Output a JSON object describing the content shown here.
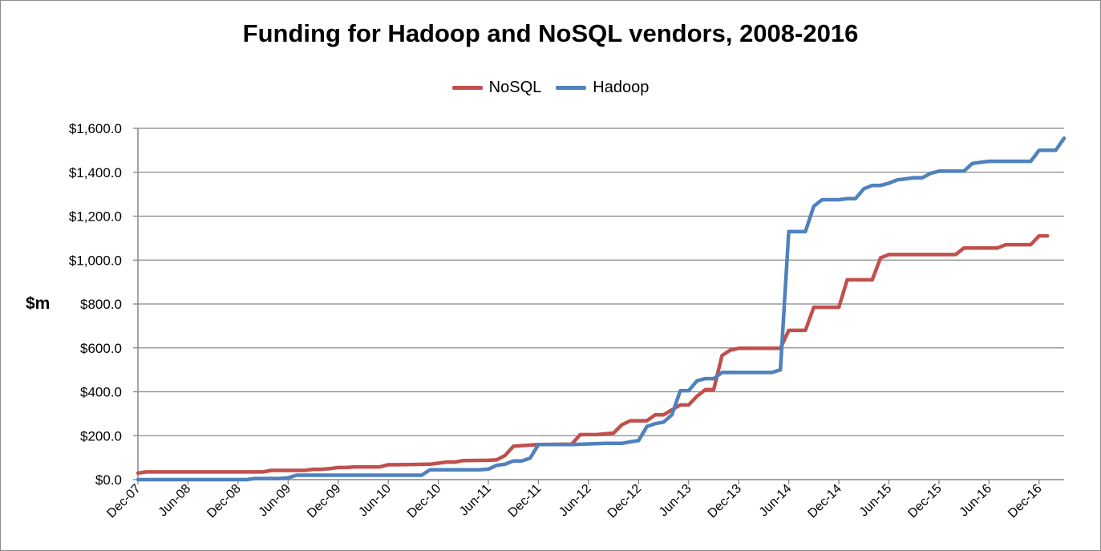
{
  "chart_data": {
    "type": "line",
    "title": "Funding for Hadoop and NoSQL vendors, 2008-2016",
    "xlabel": "",
    "ylabel": "$m",
    "ylim": [
      0,
      1600
    ],
    "y_ticks": [
      "$0.0",
      "$200.0",
      "$400.0",
      "$600.0",
      "$800.0",
      "$1,000.0",
      "$1,200.0",
      "$1,400.0",
      "$1,600.0"
    ],
    "x_ticks": [
      "Dec-07",
      "Jun-08",
      "Dec-08",
      "Jun-09",
      "Dec-09",
      "Jun-10",
      "Dec-10",
      "Jun-11",
      "Dec-11",
      "Jun-12",
      "Dec-12",
      "Jun-13",
      "Dec-13",
      "Jun-14",
      "Dec-14",
      "Jun-15",
      "Dec-15",
      "Jun-16",
      "Dec-16"
    ],
    "grid": true,
    "legend": "top",
    "series": [
      {
        "name": "NoSQL",
        "color": "#c0504d",
        "points": [
          [
            "2007-12",
            30
          ],
          [
            "2008-01",
            35
          ],
          [
            "2008-06",
            35
          ],
          [
            "2008-12",
            35
          ],
          [
            "2009-03",
            35
          ],
          [
            "2009-04",
            42
          ],
          [
            "2009-06",
            42
          ],
          [
            "2009-08",
            42
          ],
          [
            "2009-09",
            47
          ],
          [
            "2009-10",
            47
          ],
          [
            "2009-11",
            50
          ],
          [
            "2009-12",
            55
          ],
          [
            "2010-01",
            55
          ],
          [
            "2010-02",
            58
          ],
          [
            "2010-05",
            58
          ],
          [
            "2010-06",
            68
          ],
          [
            "2010-07",
            68
          ],
          [
            "2010-11",
            70
          ],
          [
            "2011-01",
            80
          ],
          [
            "2011-02",
            80
          ],
          [
            "2011-03",
            87
          ],
          [
            "2011-06",
            88
          ],
          [
            "2011-07",
            90
          ],
          [
            "2011-08",
            110
          ],
          [
            "2011-09",
            152
          ],
          [
            "2011-10",
            155
          ],
          [
            "2011-12",
            160
          ],
          [
            "2012-04",
            162
          ],
          [
            "2012-05",
            205
          ],
          [
            "2012-07",
            205
          ],
          [
            "2012-09",
            212
          ],
          [
            "2012-10",
            250
          ],
          [
            "2012-11",
            268
          ],
          [
            "2012-12",
            268
          ],
          [
            "2013-01",
            268
          ],
          [
            "2013-02",
            295
          ],
          [
            "2013-03",
            295
          ],
          [
            "2013-04",
            318
          ],
          [
            "2013-05",
            340
          ],
          [
            "2013-06",
            340
          ],
          [
            "2013-07",
            380
          ],
          [
            "2013-08",
            410
          ],
          [
            "2013-09",
            410
          ],
          [
            "2013-10",
            565
          ],
          [
            "2013-11",
            590
          ],
          [
            "2013-12",
            598
          ],
          [
            "2014-05",
            598
          ],
          [
            "2014-06",
            680
          ],
          [
            "2014-08",
            680
          ],
          [
            "2014-09",
            785
          ],
          [
            "2014-12",
            785
          ],
          [
            "2015-01",
            910
          ],
          [
            "2015-04",
            910
          ],
          [
            "2015-05",
            1010
          ],
          [
            "2015-06",
            1025
          ],
          [
            "2015-12",
            1025
          ],
          [
            "2016-02",
            1025
          ],
          [
            "2016-03",
            1055
          ],
          [
            "2016-07",
            1055
          ],
          [
            "2016-08",
            1070
          ],
          [
            "2016-11",
            1070
          ],
          [
            "2016-12",
            1110
          ],
          [
            "2017-01",
            1110
          ]
        ]
      },
      {
        "name": "Hadoop",
        "color": "#4f81bd",
        "points": [
          [
            "2007-12",
            0
          ],
          [
            "2008-06",
            0
          ],
          [
            "2008-12",
            0
          ],
          [
            "2009-01",
            0
          ],
          [
            "2009-02",
            5
          ],
          [
            "2009-05",
            5
          ],
          [
            "2009-06",
            8
          ],
          [
            "2009-07",
            20
          ],
          [
            "2010-10",
            20
          ],
          [
            "2010-11",
            45
          ],
          [
            "2011-05",
            45
          ],
          [
            "2011-06",
            48
          ],
          [
            "2011-07",
            65
          ],
          [
            "2011-08",
            70
          ],
          [
            "2011-09",
            85
          ],
          [
            "2011-10",
            85
          ],
          [
            "2011-11",
            98
          ],
          [
            "2011-12",
            160
          ],
          [
            "2012-04",
            160
          ],
          [
            "2012-08",
            165
          ],
          [
            "2012-10",
            165
          ],
          [
            "2012-11",
            172
          ],
          [
            "2012-12",
            178
          ],
          [
            "2013-01",
            242
          ],
          [
            "2013-02",
            255
          ],
          [
            "2013-03",
            262
          ],
          [
            "2013-04",
            295
          ],
          [
            "2013-05",
            405
          ],
          [
            "2013-06",
            405
          ],
          [
            "2013-07",
            450
          ],
          [
            "2013-08",
            460
          ],
          [
            "2013-09",
            460
          ],
          [
            "2013-10",
            488
          ],
          [
            "2014-04",
            488
          ],
          [
            "2014-05",
            500
          ],
          [
            "2014-06",
            1130
          ],
          [
            "2014-08",
            1130
          ],
          [
            "2014-09",
            1245
          ],
          [
            "2014-10",
            1275
          ],
          [
            "2014-12",
            1275
          ],
          [
            "2015-01",
            1280
          ],
          [
            "2015-02",
            1280
          ],
          [
            "2015-03",
            1325
          ],
          [
            "2015-04",
            1340
          ],
          [
            "2015-05",
            1340
          ],
          [
            "2015-06",
            1350
          ],
          [
            "2015-07",
            1365
          ],
          [
            "2015-08",
            1370
          ],
          [
            "2015-09",
            1375
          ],
          [
            "2015-10",
            1375
          ],
          [
            "2015-11",
            1395
          ],
          [
            "2015-12",
            1405
          ],
          [
            "2016-03",
            1405
          ],
          [
            "2016-04",
            1440
          ],
          [
            "2016-05",
            1445
          ],
          [
            "2016-06",
            1450
          ],
          [
            "2016-11",
            1450
          ],
          [
            "2016-12",
            1500
          ],
          [
            "2017-02",
            1500
          ],
          [
            "2017-03",
            1555
          ]
        ]
      }
    ]
  }
}
